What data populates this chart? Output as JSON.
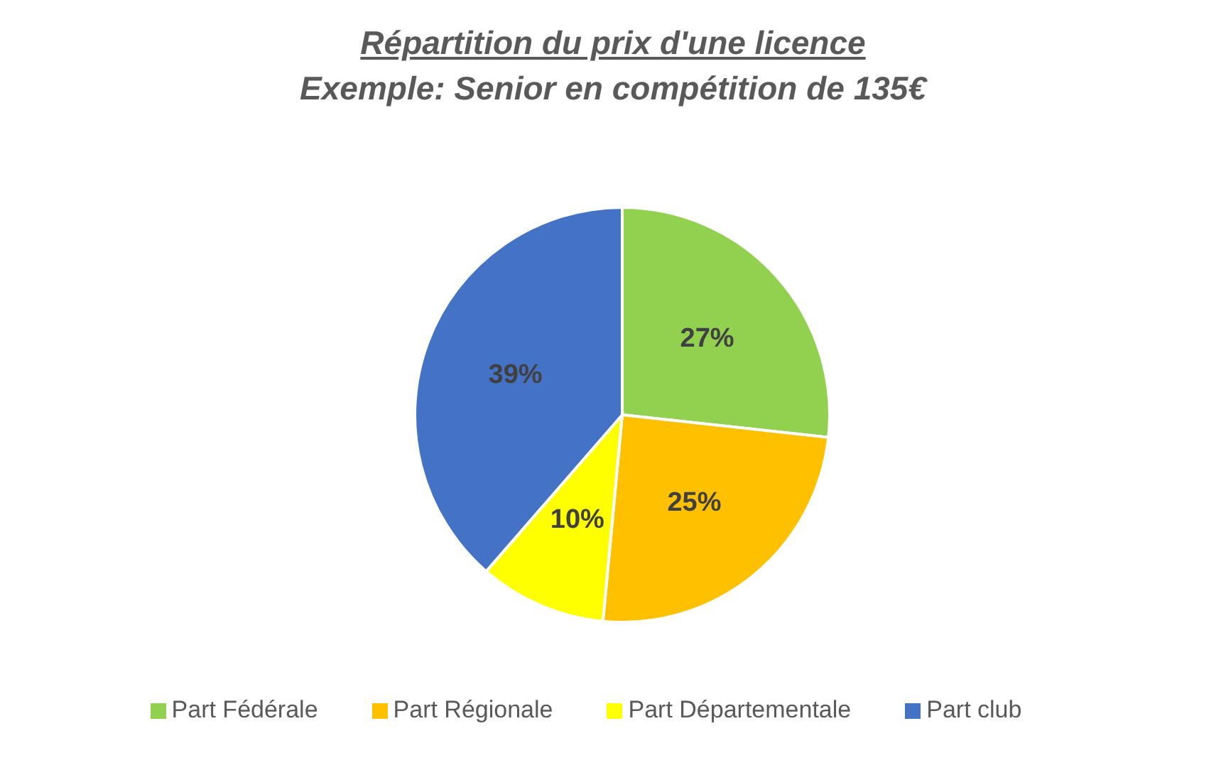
{
  "chart_data": {
    "type": "pie",
    "title": "Répartition du prix d'une licence",
    "subtitle": "Exemple: Senior en compétition de 135€",
    "categories": [
      "Part Fédérale",
      "Part Régionale",
      "Part Départementale",
      "Part club"
    ],
    "values": [
      27,
      25,
      10,
      39
    ],
    "colors": [
      "#92d050",
      "#ffc000",
      "#ffff00",
      "#4472c4"
    ],
    "value_labels": [
      "27%",
      "25%",
      "10%",
      "39%"
    ],
    "legend": "bottom"
  }
}
